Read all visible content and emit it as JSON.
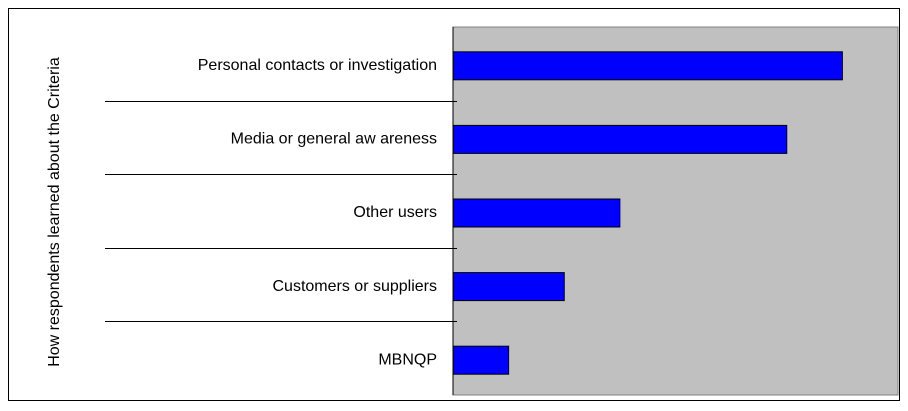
{
  "chart_data": {
    "type": "bar",
    "orientation": "horizontal",
    "y_label": "How respondents learned about the Criteria",
    "categories": [
      "Personal contacts or investigation",
      "Media or general aw areness",
      "Other users",
      "Customers or suppliers",
      "MBNQP"
    ],
    "values": [
      7,
      6,
      3,
      2,
      1
    ],
    "color": "#0000ff",
    "xlim": [
      0,
      8
    ]
  }
}
